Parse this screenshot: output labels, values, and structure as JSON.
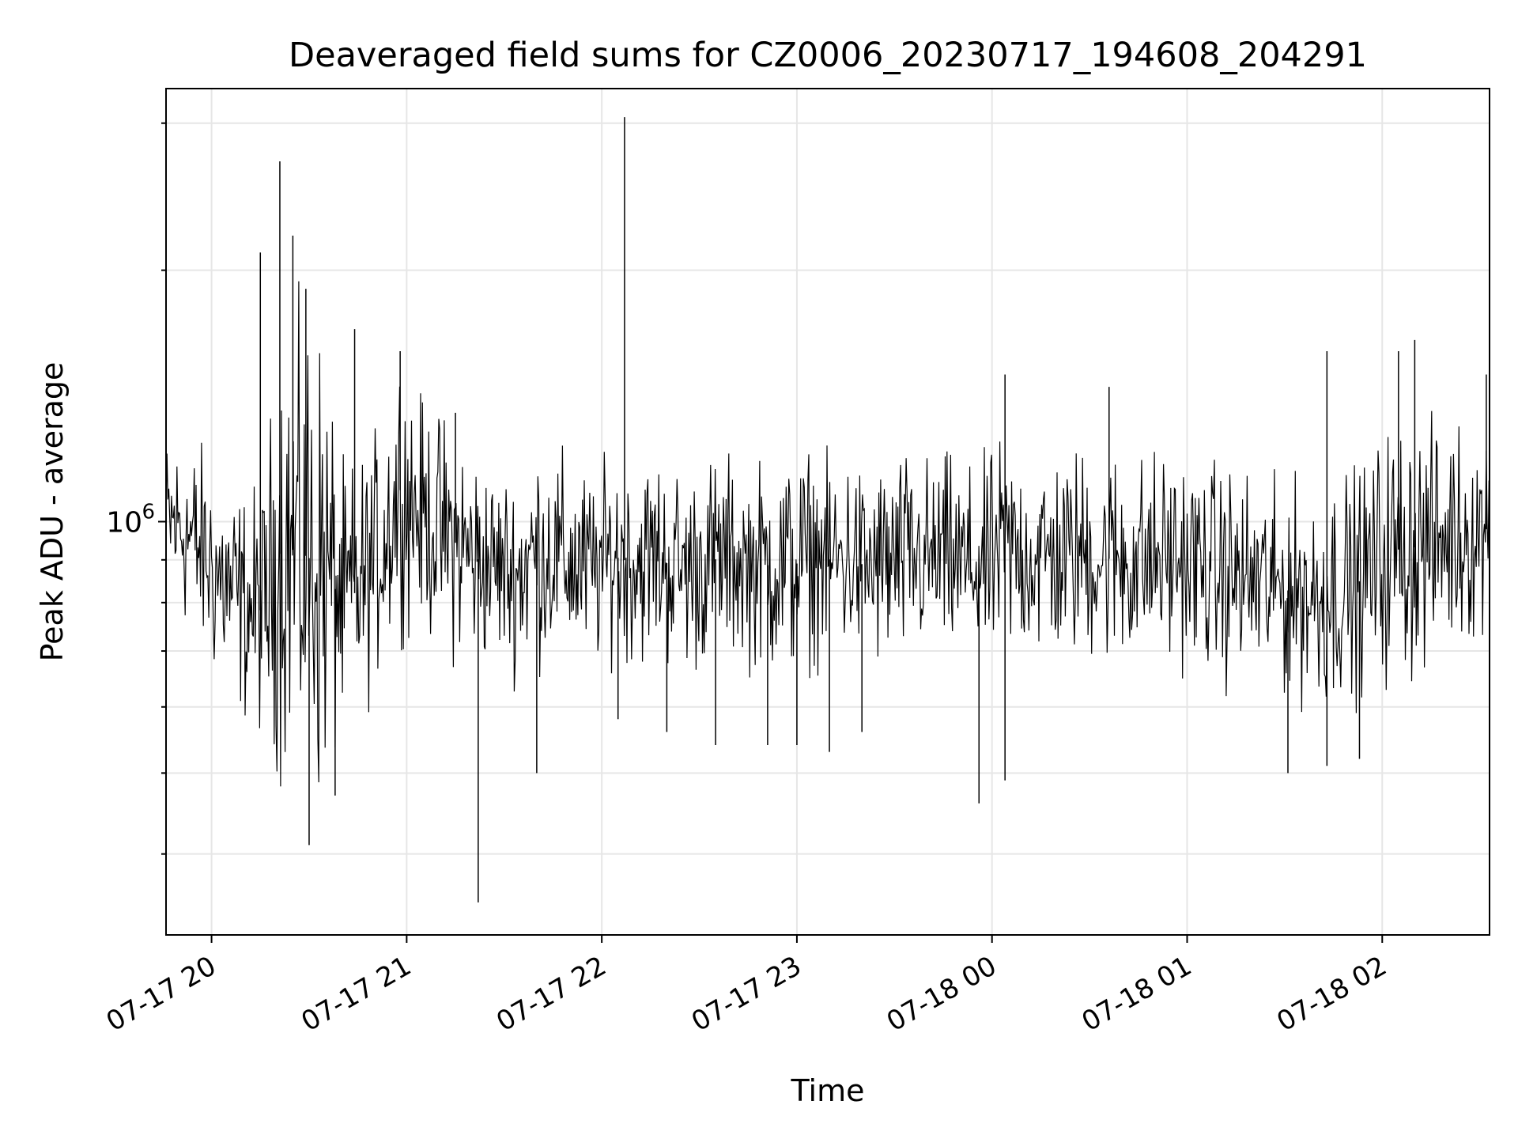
{
  "chart_data": {
    "type": "line",
    "title": "Deaveraged field sums for CZ0006_20230717_194608_204291",
    "xlabel": "Time",
    "ylabel": "Peak ADU - average",
    "y_scale": "log",
    "xlim": [
      "2023-07-17 19:46",
      "2023-07-18 02:33"
    ],
    "ylim": [
      320000,
      3300000
    ],
    "x_ticks": [
      {
        "time": "2023-07-17 20:00",
        "label": "07-17 20"
      },
      {
        "time": "2023-07-17 21:00",
        "label": "07-17 21"
      },
      {
        "time": "2023-07-17 22:00",
        "label": "07-17 22"
      },
      {
        "time": "2023-07-17 23:00",
        "label": "07-17 23"
      },
      {
        "time": "2023-07-18 00:00",
        "label": "07-18 00"
      },
      {
        "time": "2023-07-18 01:00",
        "label": "07-18 01"
      },
      {
        "time": "2023-07-18 02:00",
        "label": "07-18 02"
      }
    ],
    "y_major_ticks": [
      {
        "value": 1000000,
        "label_base": "10",
        "label_exp": "6"
      }
    ],
    "y_minor_ticks": [
      400000,
      500000,
      600000,
      700000,
      800000,
      900000,
      2000000,
      3000000
    ],
    "grid": true,
    "line_color": "#000000",
    "grid_color": "#e6e6e6",
    "series": [
      {
        "x": [
          "2023-07-17 19:46",
          "2023-07-17 19:52",
          "2023-07-17 19:58",
          "2023-07-17 20:04",
          "2023-07-17 20:10",
          "2023-07-17 20:16",
          "2023-07-17 20:22",
          "2023-07-17 20:28",
          "2023-07-17 20:34",
          "2023-07-17 20:40",
          "2023-07-17 20:46",
          "2023-07-17 20:52",
          "2023-07-17 20:58",
          "2023-07-17 21:04",
          "2023-07-17 21:10",
          "2023-07-17 21:16",
          "2023-07-17 21:22",
          "2023-07-17 21:28",
          "2023-07-17 21:34",
          "2023-07-17 21:40",
          "2023-07-17 21:46",
          "2023-07-17 21:52",
          "2023-07-17 21:58",
          "2023-07-17 22:04",
          "2023-07-17 22:10",
          "2023-07-17 22:16",
          "2023-07-17 22:22",
          "2023-07-17 22:28",
          "2023-07-17 22:34",
          "2023-07-17 22:40",
          "2023-07-17 22:46",
          "2023-07-17 22:52",
          "2023-07-17 22:58",
          "2023-07-17 23:04",
          "2023-07-17 23:10",
          "2023-07-17 23:16",
          "2023-07-17 23:22",
          "2023-07-17 23:28",
          "2023-07-17 23:34",
          "2023-07-17 23:40",
          "2023-07-17 23:46",
          "2023-07-17 23:52",
          "2023-07-17 23:58",
          "2023-07-18 00:04",
          "2023-07-18 00:10",
          "2023-07-18 00:16",
          "2023-07-18 00:22",
          "2023-07-18 00:28",
          "2023-07-18 00:34",
          "2023-07-18 00:40",
          "2023-07-18 00:46",
          "2023-07-18 00:52",
          "2023-07-18 00:58",
          "2023-07-18 01:04",
          "2023-07-18 01:10",
          "2023-07-18 01:16",
          "2023-07-18 01:22",
          "2023-07-18 01:28",
          "2023-07-18 01:34",
          "2023-07-18 01:40",
          "2023-07-18 01:46",
          "2023-07-18 01:52",
          "2023-07-18 01:58",
          "2023-07-18 02:04",
          "2023-07-18 02:10",
          "2023-07-18 02:16",
          "2023-07-18 02:22",
          "2023-07-18 02:28",
          "2023-07-18 02:33"
        ],
        "y_low": [
          780000,
          720000,
          650000,
          600000,
          560000,
          530000,
          460000,
          430000,
          420000,
          520000,
          560000,
          640000,
          700000,
          720000,
          680000,
          650000,
          650000,
          660000,
          620000,
          650000,
          660000,
          640000,
          650000,
          660000,
          650000,
          660000,
          640000,
          640000,
          650000,
          660000,
          650000,
          630000,
          620000,
          650000,
          660000,
          650000,
          650000,
          630000,
          650000,
          660000,
          660000,
          650000,
          640000,
          660000,
          660000,
          650000,
          650000,
          660000,
          650000,
          640000,
          640000,
          650000,
          650000,
          640000,
          620000,
          610000,
          600000,
          600000,
          590000,
          570000,
          580000,
          590000,
          600000,
          620000,
          620000,
          650000,
          680000,
          690000,
          690000
        ],
        "y_high": [
          1300000,
          1320000,
          1260000,
          1180000,
          1130000,
          1150000,
          1900000,
          1950000,
          1850000,
          1200000,
          1250000,
          1350000,
          1700000,
          1450000,
          1400000,
          1350000,
          1250000,
          1180000,
          1200000,
          1300000,
          1250000,
          1220000,
          1180000,
          1250000,
          1220000,
          1250000,
          1220000,
          1200000,
          1250000,
          1230000,
          1200000,
          1250000,
          1260000,
          1260000,
          1230000,
          1250000,
          1200000,
          1250000,
          1250000,
          1230000,
          1240000,
          1200000,
          1230000,
          1300000,
          1250000,
          1270000,
          1250000,
          1280000,
          1250000,
          1280000,
          1250000,
          1260000,
          1250000,
          1220000,
          1220000,
          1200000,
          1180000,
          1150000,
          1150000,
          1150000,
          1200000,
          1200000,
          1300000,
          1380000,
          1400000,
          1350000,
          1370000,
          1350000,
          1400000
        ],
        "spikes": [
          {
            "time": "2023-07-17 20:15",
            "value": 2100000
          },
          {
            "time": "2023-07-17 20:21",
            "value": 2700000
          },
          {
            "time": "2023-07-17 20:25",
            "value": 2200000
          },
          {
            "time": "2023-07-17 20:29",
            "value": 1900000
          },
          {
            "time": "2023-07-17 20:30",
            "value": 410000
          },
          {
            "time": "2023-07-17 20:38",
            "value": 470000
          },
          {
            "time": "2023-07-17 20:44",
            "value": 1700000
          },
          {
            "time": "2023-07-17 20:58",
            "value": 1600000
          },
          {
            "time": "2023-07-17 21:22",
            "value": 350000
          },
          {
            "time": "2023-07-17 21:15",
            "value": 1350000
          },
          {
            "time": "2023-07-17 21:40",
            "value": 500000
          },
          {
            "time": "2023-07-17 22:07",
            "value": 3050000
          },
          {
            "time": "2023-07-17 22:05",
            "value": 580000
          },
          {
            "time": "2023-07-17 22:20",
            "value": 560000
          },
          {
            "time": "2023-07-17 22:35",
            "value": 540000
          },
          {
            "time": "2023-07-17 22:51",
            "value": 540000
          },
          {
            "time": "2023-07-17 23:00",
            "value": 540000
          },
          {
            "time": "2023-07-17 23:10",
            "value": 530000
          },
          {
            "time": "2023-07-17 23:20",
            "value": 560000
          },
          {
            "time": "2023-07-17 23:56",
            "value": 460000
          },
          {
            "time": "2023-07-18 00:04",
            "value": 1500000
          },
          {
            "time": "2023-07-18 00:04",
            "value": 490000
          },
          {
            "time": "2023-07-18 00:36",
            "value": 1450000
          },
          {
            "time": "2023-07-18 01:31",
            "value": 500000
          },
          {
            "time": "2023-07-18 01:43",
            "value": 1600000
          },
          {
            "time": "2023-07-18 01:43",
            "value": 510000
          },
          {
            "time": "2023-07-18 01:53",
            "value": 520000
          },
          {
            "time": "2023-07-18 02:05",
            "value": 1600000
          },
          {
            "time": "2023-07-18 02:10",
            "value": 1650000
          },
          {
            "time": "2023-07-18 02:32",
            "value": 1500000
          }
        ]
      }
    ]
  }
}
